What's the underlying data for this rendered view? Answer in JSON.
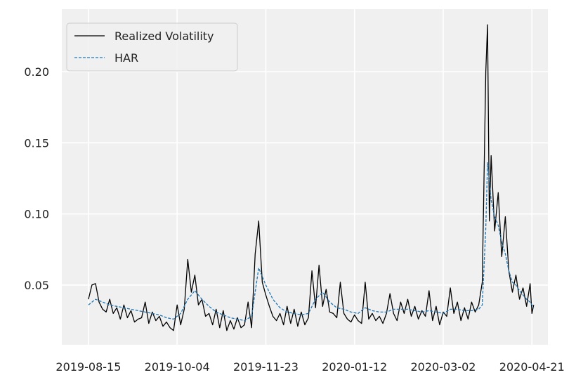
{
  "chart_data": {
    "type": "line",
    "title": "",
    "xlabel": "",
    "ylabel": "",
    "x_ticks": [
      "2019-08-15",
      "2019-10-04",
      "2019-11-23",
      "2020-01-12",
      "2020-03-02",
      "2020-04-21"
    ],
    "y_ticks": [
      "0.05",
      "0.10",
      "0.15",
      "0.20"
    ],
    "xlim": [
      "2019-07-31",
      "2020-04-30"
    ],
    "ylim": [
      0.008,
      0.244
    ],
    "grid": true,
    "legend_position": "top-left",
    "background": "#f0f0f0",
    "series": [
      {
        "name": "Realized Volatility",
        "color": "#000000",
        "style": "solid",
        "values": [
          [
            "2019-08-15",
            0.04
          ],
          [
            "2019-08-17",
            0.05
          ],
          [
            "2019-08-19",
            0.051
          ],
          [
            "2019-08-21",
            0.038
          ],
          [
            "2019-08-23",
            0.033
          ],
          [
            "2019-08-25",
            0.031
          ],
          [
            "2019-08-27",
            0.04
          ],
          [
            "2019-08-29",
            0.03
          ],
          [
            "2019-08-31",
            0.034
          ],
          [
            "2019-09-02",
            0.026
          ],
          [
            "2019-09-04",
            0.036
          ],
          [
            "2019-09-06",
            0.027
          ],
          [
            "2019-09-08",
            0.032
          ],
          [
            "2019-09-10",
            0.024
          ],
          [
            "2019-09-12",
            0.026
          ],
          [
            "2019-09-14",
            0.027
          ],
          [
            "2019-09-16",
            0.038
          ],
          [
            "2019-09-18",
            0.023
          ],
          [
            "2019-09-20",
            0.031
          ],
          [
            "2019-09-22",
            0.025
          ],
          [
            "2019-09-24",
            0.028
          ],
          [
            "2019-09-26",
            0.021
          ],
          [
            "2019-09-28",
            0.024
          ],
          [
            "2019-09-30",
            0.02
          ],
          [
            "2019-10-02",
            0.018
          ],
          [
            "2019-10-04",
            0.036
          ],
          [
            "2019-10-06",
            0.022
          ],
          [
            "2019-10-08",
            0.033
          ],
          [
            "2019-10-10",
            0.068
          ],
          [
            "2019-10-12",
            0.045
          ],
          [
            "2019-10-14",
            0.057
          ],
          [
            "2019-10-16",
            0.036
          ],
          [
            "2019-10-18",
            0.04
          ],
          [
            "2019-10-20",
            0.028
          ],
          [
            "2019-10-22",
            0.03
          ],
          [
            "2019-10-24",
            0.022
          ],
          [
            "2019-10-26",
            0.033
          ],
          [
            "2019-10-28",
            0.02
          ],
          [
            "2019-10-30",
            0.032
          ],
          [
            "2019-11-01",
            0.018
          ],
          [
            "2019-11-03",
            0.025
          ],
          [
            "2019-11-05",
            0.019
          ],
          [
            "2019-11-07",
            0.027
          ],
          [
            "2019-11-09",
            0.02
          ],
          [
            "2019-11-11",
            0.022
          ],
          [
            "2019-11-13",
            0.038
          ],
          [
            "2019-11-15",
            0.02
          ],
          [
            "2019-11-17",
            0.072
          ],
          [
            "2019-11-19",
            0.095
          ],
          [
            "2019-11-21",
            0.052
          ],
          [
            "2019-11-23",
            0.043
          ],
          [
            "2019-11-25",
            0.035
          ],
          [
            "2019-11-27",
            0.028
          ],
          [
            "2019-11-29",
            0.025
          ],
          [
            "2019-12-01",
            0.03
          ],
          [
            "2019-12-03",
            0.022
          ],
          [
            "2019-12-05",
            0.035
          ],
          [
            "2019-12-07",
            0.023
          ],
          [
            "2019-12-09",
            0.033
          ],
          [
            "2019-12-11",
            0.021
          ],
          [
            "2019-12-13",
            0.031
          ],
          [
            "2019-12-15",
            0.022
          ],
          [
            "2019-12-17",
            0.027
          ],
          [
            "2019-12-19",
            0.06
          ],
          [
            "2019-12-21",
            0.034
          ],
          [
            "2019-12-23",
            0.064
          ],
          [
            "2019-12-25",
            0.035
          ],
          [
            "2019-12-27",
            0.047
          ],
          [
            "2019-12-29",
            0.031
          ],
          [
            "2019-12-31",
            0.03
          ],
          [
            "2020-01-02",
            0.027
          ],
          [
            "2020-01-04",
            0.052
          ],
          [
            "2020-01-06",
            0.03
          ],
          [
            "2020-01-08",
            0.026
          ],
          [
            "2020-01-10",
            0.024
          ],
          [
            "2020-01-12",
            0.029
          ],
          [
            "2020-01-14",
            0.025
          ],
          [
            "2020-01-16",
            0.023
          ],
          [
            "2020-01-18",
            0.052
          ],
          [
            "2020-01-20",
            0.026
          ],
          [
            "2020-01-22",
            0.03
          ],
          [
            "2020-01-24",
            0.025
          ],
          [
            "2020-01-26",
            0.028
          ],
          [
            "2020-01-28",
            0.023
          ],
          [
            "2020-01-30",
            0.03
          ],
          [
            "2020-02-01",
            0.044
          ],
          [
            "2020-02-03",
            0.03
          ],
          [
            "2020-02-05",
            0.025
          ],
          [
            "2020-02-07",
            0.038
          ],
          [
            "2020-02-09",
            0.03
          ],
          [
            "2020-02-11",
            0.04
          ],
          [
            "2020-02-13",
            0.028
          ],
          [
            "2020-02-15",
            0.035
          ],
          [
            "2020-02-17",
            0.026
          ],
          [
            "2020-02-19",
            0.032
          ],
          [
            "2020-02-21",
            0.028
          ],
          [
            "2020-02-23",
            0.046
          ],
          [
            "2020-02-25",
            0.025
          ],
          [
            "2020-02-27",
            0.035
          ],
          [
            "2020-02-29",
            0.022
          ],
          [
            "2020-03-02",
            0.031
          ],
          [
            "2020-03-04",
            0.028
          ],
          [
            "2020-03-06",
            0.048
          ],
          [
            "2020-03-08",
            0.03
          ],
          [
            "2020-03-10",
            0.038
          ],
          [
            "2020-03-12",
            0.025
          ],
          [
            "2020-03-14",
            0.034
          ],
          [
            "2020-03-16",
            0.026
          ],
          [
            "2020-03-18",
            0.038
          ],
          [
            "2020-03-20",
            0.031
          ],
          [
            "2020-03-22",
            0.036
          ],
          [
            "2020-03-24",
            0.052
          ],
          [
            "2020-03-26",
            0.2
          ],
          [
            "2020-03-27",
            0.233
          ],
          [
            "2020-03-28",
            0.095
          ],
          [
            "2020-03-29",
            0.141
          ],
          [
            "2020-03-31",
            0.088
          ],
          [
            "2020-04-02",
            0.115
          ],
          [
            "2020-04-04",
            0.07
          ],
          [
            "2020-04-06",
            0.098
          ],
          [
            "2020-04-08",
            0.06
          ],
          [
            "2020-04-10",
            0.045
          ],
          [
            "2020-04-12",
            0.057
          ],
          [
            "2020-04-14",
            0.04
          ],
          [
            "2020-04-16",
            0.048
          ],
          [
            "2020-04-18",
            0.035
          ],
          [
            "2020-04-20",
            0.051
          ],
          [
            "2020-04-21",
            0.03
          ],
          [
            "2020-04-22",
            0.036
          ]
        ]
      },
      {
        "name": "HAR",
        "color": "#1f77b4",
        "style": "dashed",
        "values": [
          [
            "2019-08-15",
            0.036
          ],
          [
            "2019-08-19",
            0.04
          ],
          [
            "2019-08-23",
            0.038
          ],
          [
            "2019-08-27",
            0.036
          ],
          [
            "2019-08-31",
            0.035
          ],
          [
            "2019-09-04",
            0.034
          ],
          [
            "2019-09-08",
            0.033
          ],
          [
            "2019-09-12",
            0.032
          ],
          [
            "2019-09-16",
            0.031
          ],
          [
            "2019-09-20",
            0.03
          ],
          [
            "2019-09-24",
            0.029
          ],
          [
            "2019-09-28",
            0.027
          ],
          [
            "2019-10-02",
            0.026
          ],
          [
            "2019-10-06",
            0.03
          ],
          [
            "2019-10-10",
            0.04
          ],
          [
            "2019-10-14",
            0.046
          ],
          [
            "2019-10-18",
            0.04
          ],
          [
            "2019-10-22",
            0.035
          ],
          [
            "2019-10-26",
            0.031
          ],
          [
            "2019-10-30",
            0.029
          ],
          [
            "2019-11-03",
            0.027
          ],
          [
            "2019-11-07",
            0.026
          ],
          [
            "2019-11-11",
            0.025
          ],
          [
            "2019-11-15",
            0.028
          ],
          [
            "2019-11-19",
            0.062
          ],
          [
            "2019-11-23",
            0.05
          ],
          [
            "2019-11-27",
            0.04
          ],
          [
            "2019-12-01",
            0.034
          ],
          [
            "2019-12-05",
            0.031
          ],
          [
            "2019-12-09",
            0.03
          ],
          [
            "2019-12-13",
            0.029
          ],
          [
            "2019-12-17",
            0.03
          ],
          [
            "2019-12-21",
            0.04
          ],
          [
            "2019-12-25",
            0.045
          ],
          [
            "2019-12-29",
            0.038
          ],
          [
            "2020-01-02",
            0.034
          ],
          [
            "2020-01-06",
            0.033
          ],
          [
            "2020-01-10",
            0.031
          ],
          [
            "2020-01-14",
            0.03
          ],
          [
            "2020-01-18",
            0.034
          ],
          [
            "2020-01-22",
            0.032
          ],
          [
            "2020-01-26",
            0.031
          ],
          [
            "2020-01-30",
            0.031
          ],
          [
            "2020-02-03",
            0.033
          ],
          [
            "2020-02-07",
            0.033
          ],
          [
            "2020-02-11",
            0.033
          ],
          [
            "2020-02-15",
            0.032
          ],
          [
            "2020-02-19",
            0.031
          ],
          [
            "2020-02-23",
            0.032
          ],
          [
            "2020-02-27",
            0.031
          ],
          [
            "2020-03-02",
            0.03
          ],
          [
            "2020-03-06",
            0.033
          ],
          [
            "2020-03-10",
            0.033
          ],
          [
            "2020-03-14",
            0.032
          ],
          [
            "2020-03-18",
            0.032
          ],
          [
            "2020-03-22",
            0.033
          ],
          [
            "2020-03-24",
            0.036
          ],
          [
            "2020-03-26",
            0.09
          ],
          [
            "2020-03-27",
            0.136
          ],
          [
            "2020-03-29",
            0.11
          ],
          [
            "2020-03-31",
            0.098
          ],
          [
            "2020-04-02",
            0.092
          ],
          [
            "2020-04-04",
            0.08
          ],
          [
            "2020-04-06",
            0.072
          ],
          [
            "2020-04-08",
            0.06
          ],
          [
            "2020-04-10",
            0.052
          ],
          [
            "2020-04-12",
            0.05
          ],
          [
            "2020-04-14",
            0.046
          ],
          [
            "2020-04-16",
            0.043
          ],
          [
            "2020-04-18",
            0.04
          ],
          [
            "2020-04-20",
            0.038
          ],
          [
            "2020-04-21",
            0.036
          ],
          [
            "2020-04-22",
            0.034
          ]
        ]
      }
    ]
  }
}
